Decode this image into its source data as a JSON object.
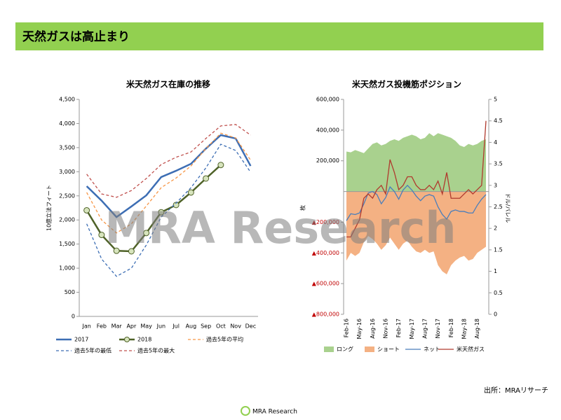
{
  "header": {
    "title": "天然ガスは高止まり"
  },
  "watermark": "MRA Research",
  "source": "出所：MRAリサーチ",
  "logo": "MRA Research",
  "chart_data": [
    {
      "type": "line",
      "title": "米天然ガス在庫の推移",
      "y_label": "10億立法フィート",
      "categories": [
        "Jan",
        "Feb",
        "Mar",
        "Apr",
        "May",
        "Jun",
        "Jul",
        "Aug",
        "Sep",
        "Oct",
        "Nov",
        "Dec"
      ],
      "ylim": [
        0,
        4500
      ],
      "yticks": [
        0,
        500,
        {
          "value": 1000,
          "label": "1,000"
        },
        {
          "value": 1500,
          "label": "1,500"
        },
        {
          "value": 2000,
          "label": "2,000"
        },
        {
          "value": 2500,
          "label": "2,500"
        },
        {
          "value": 3000,
          "label": "3,000"
        },
        {
          "value": 3500,
          "label": "3,500"
        },
        {
          "value": 4000,
          "label": "4,000"
        },
        {
          "value": 4500,
          "label": "4,500"
        }
      ],
      "series": [
        {
          "name": "2017",
          "color": "#3d6eb4",
          "width": 2.5,
          "values": [
            2700,
            2400,
            2060,
            2280,
            2510,
            2890,
            3020,
            3165,
            3480,
            3760,
            3690,
            3120
          ]
        },
        {
          "name": "2018",
          "color": "#4f6228",
          "width": 2.5,
          "marker": "circle",
          "values": [
            2200,
            1690,
            1360,
            1350,
            1730,
            2160,
            2310,
            2570,
            2860,
            3140,
            null,
            null
          ]
        },
        {
          "name": "過去5年の平均",
          "color": "#f79646",
          "width": 1.3,
          "dashed": true,
          "values": [
            2570,
            2000,
            1730,
            1920,
            2290,
            2670,
            2870,
            3120,
            3480,
            3800,
            3700,
            3240
          ]
        },
        {
          "name": "過去5年の最低",
          "color": "#3d6eb4",
          "width": 1.3,
          "dashed": true,
          "values": [
            1920,
            1190,
            830,
            1000,
            1480,
            2060,
            2350,
            2670,
            3080,
            3570,
            3440,
            2990
          ]
        },
        {
          "name": "過去5年の最大",
          "color": "#c0504d",
          "width": 1.3,
          "dashed": true,
          "values": [
            2950,
            2540,
            2470,
            2610,
            2860,
            3150,
            3300,
            3410,
            3690,
            3950,
            3980,
            3760
          ]
        }
      ]
    },
    {
      "type": "area",
      "title": "米天然ガス投機筋ポジション",
      "y_label": "枚",
      "y2_label": "ドル/バレル",
      "negative_tick_color": "#c00000",
      "categories": [
        "Feb-16",
        null,
        null,
        "May-16",
        null,
        null,
        "Aug-16",
        null,
        null,
        "Nov-16",
        null,
        null,
        "Feb-17",
        null,
        null,
        "May-17",
        null,
        null,
        "Aug-17",
        null,
        null,
        "Nov-17",
        null,
        null,
        "Feb-18",
        null,
        null,
        "May-18",
        null,
        null,
        "Aug-18",
        null,
        null
      ],
      "ylim": [
        -800000,
        600000
      ],
      "yticks": [
        {
          "value": 600000,
          "label": "600,000"
        },
        {
          "value": 400000,
          "label": "400,000"
        },
        {
          "value": 200000,
          "label": "200,000"
        },
        {
          "value": -200000,
          "label": "▲200,000"
        },
        {
          "value": -400000,
          "label": "▲400,000"
        },
        {
          "value": -600000,
          "label": "▲600,000"
        },
        {
          "value": -800000,
          "label": "▲800,000"
        }
      ],
      "y2lim": [
        0,
        5
      ],
      "y2ticks": [
        0,
        0.5,
        1,
        1.5,
        2,
        2.5,
        3,
        3.5,
        4,
        4.5,
        5
      ],
      "series": [
        {
          "name": "ロング",
          "type": "area",
          "color": "#a9d18e",
          "values": [
            260000,
            255000,
            270000,
            260000,
            250000,
            280000,
            310000,
            320000,
            300000,
            310000,
            330000,
            340000,
            330000,
            350000,
            360000,
            370000,
            360000,
            340000,
            350000,
            380000,
            360000,
            380000,
            370000,
            360000,
            350000,
            330000,
            300000,
            290000,
            310000,
            300000,
            310000,
            330000,
            340000
          ]
        },
        {
          "name": "ショート",
          "type": "area",
          "color": "#f4b183",
          "values": [
            -450000,
            -400000,
            -420000,
            -400000,
            -330000,
            -290000,
            -310000,
            -340000,
            -380000,
            -350000,
            -300000,
            -340000,
            -380000,
            -340000,
            -320000,
            -360000,
            -390000,
            -400000,
            -380000,
            -400000,
            -390000,
            -480000,
            -520000,
            -540000,
            -480000,
            -450000,
            -430000,
            -420000,
            -450000,
            -440000,
            -400000,
            -380000,
            -360000
          ]
        },
        {
          "name": "ネット",
          "type": "line",
          "color": "#4a7ebb",
          "values": [
            -190000,
            -145000,
            -150000,
            -140000,
            -80000,
            -10000,
            0,
            -20000,
            -80000,
            -40000,
            30000,
            0,
            -50000,
            10000,
            40000,
            10000,
            -30000,
            -60000,
            -30000,
            -20000,
            -30000,
            -100000,
            -150000,
            -180000,
            -130000,
            -120000,
            -130000,
            -130000,
            -140000,
            -140000,
            -90000,
            -50000,
            -20000
          ]
        },
        {
          "name": "米天然ガス",
          "type": "line",
          "axis": "y2",
          "color": "#b03a2e",
          "values": [
            1.8,
            1.8,
            2.0,
            2.2,
            2.7,
            2.8,
            2.7,
            2.9,
            3.0,
            2.8,
            3.6,
            3.3,
            2.9,
            3.0,
            3.2,
            3.2,
            3.0,
            2.9,
            2.9,
            3.0,
            2.9,
            3.1,
            2.8,
            3.3,
            2.7,
            2.7,
            2.7,
            2.8,
            2.9,
            2.8,
            2.9,
            3.0,
            4.5
          ]
        }
      ]
    }
  ]
}
